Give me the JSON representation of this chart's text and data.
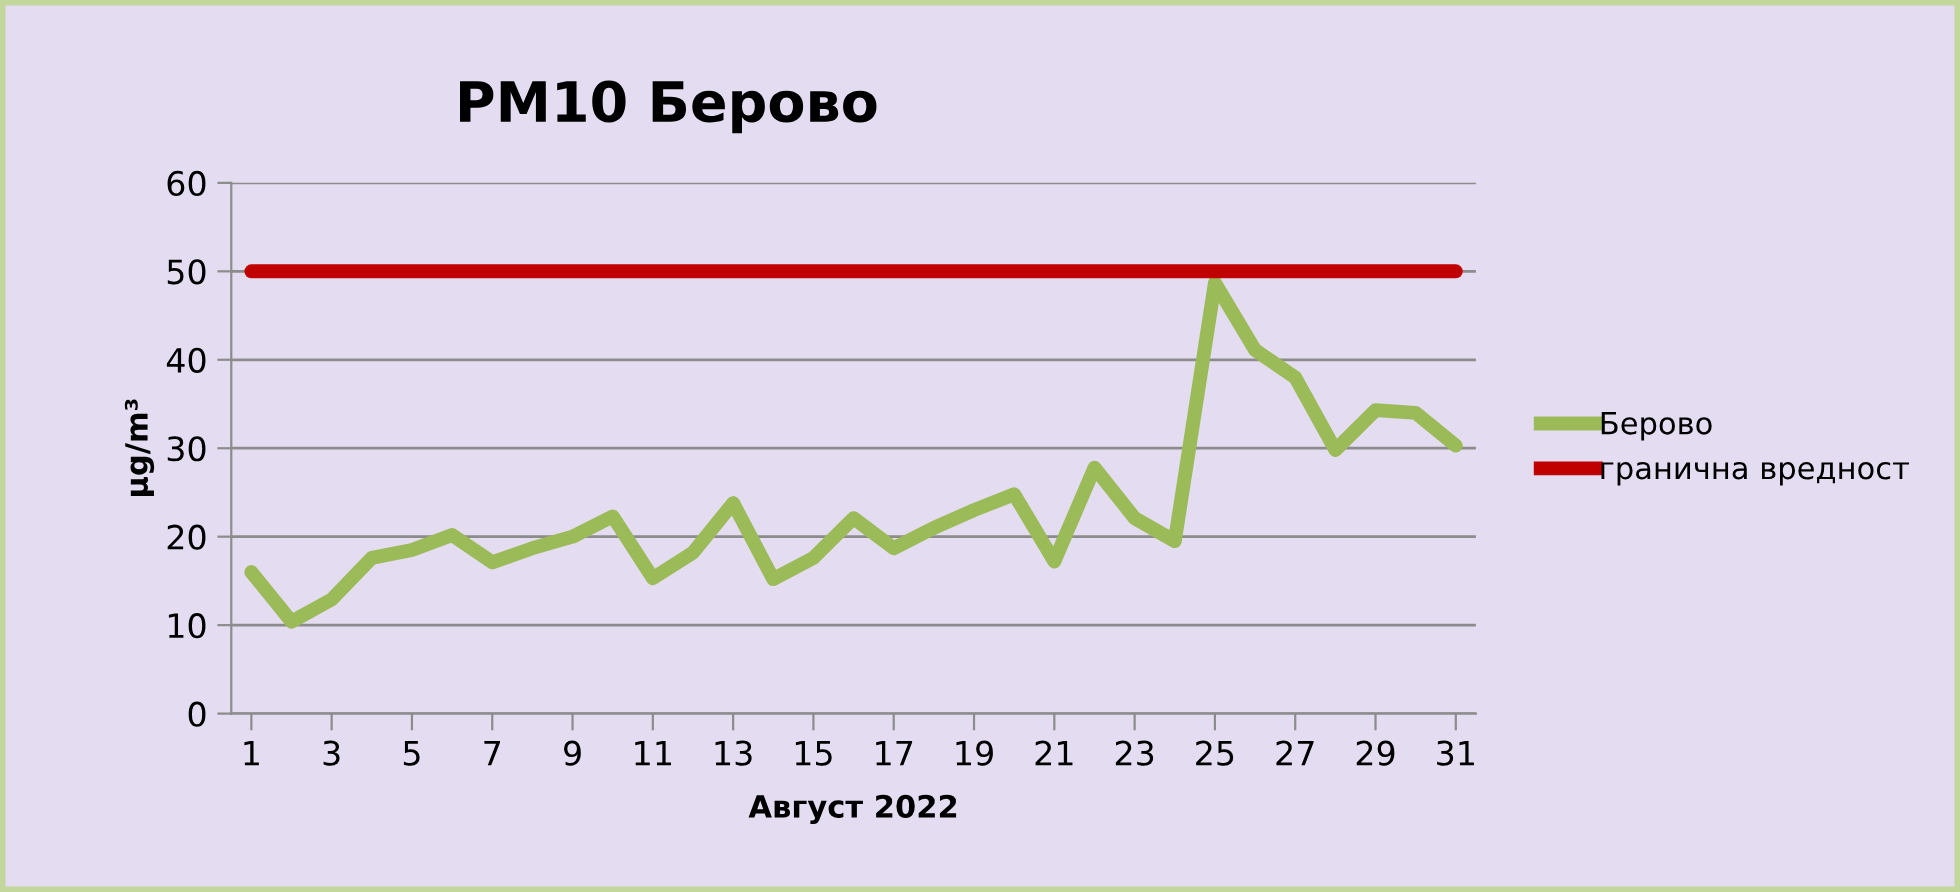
{
  "chart_data": {
    "type": "line",
    "title": "PM10 Берово",
    "xlabel": "Август 2022",
    "ylabel": "μg/m³",
    "x": [
      1,
      2,
      3,
      4,
      5,
      6,
      7,
      8,
      9,
      10,
      11,
      12,
      13,
      14,
      15,
      16,
      17,
      18,
      19,
      20,
      21,
      22,
      23,
      24,
      25,
      26,
      27,
      28,
      29,
      30,
      31
    ],
    "xlim": [
      0.5,
      31.5
    ],
    "xticks": [
      1,
      3,
      5,
      7,
      9,
      11,
      13,
      15,
      17,
      19,
      21,
      23,
      25,
      27,
      29,
      31
    ],
    "ylim": [
      0,
      60
    ],
    "yticks": [
      0,
      10,
      20,
      30,
      40,
      50,
      60
    ],
    "grid": "y",
    "legend": "right",
    "marker": "none",
    "line_style": "solid",
    "series": [
      {
        "name": "Берово",
        "color": "#9bbb59",
        "values": [
          16,
          10.4,
          12.9,
          17.6,
          18.5,
          20.2,
          17.1,
          18.7,
          20,
          22.3,
          15.3,
          18.2,
          23.8,
          15.2,
          17.6,
          22.1,
          18.7,
          21,
          23,
          24.8,
          17.2,
          27.8,
          22.1,
          19.5,
          48.7,
          41.1,
          38,
          29.8,
          34.3,
          34,
          30.3
        ]
      },
      {
        "name": "гранична вредност",
        "color": "#c00000",
        "values": [
          50,
          50,
          50,
          50,
          50,
          50,
          50,
          50,
          50,
          50,
          50,
          50,
          50,
          50,
          50,
          50,
          50,
          50,
          50,
          50,
          50,
          50,
          50,
          50,
          50,
          50,
          50,
          50,
          50,
          50,
          50
        ]
      }
    ]
  }
}
